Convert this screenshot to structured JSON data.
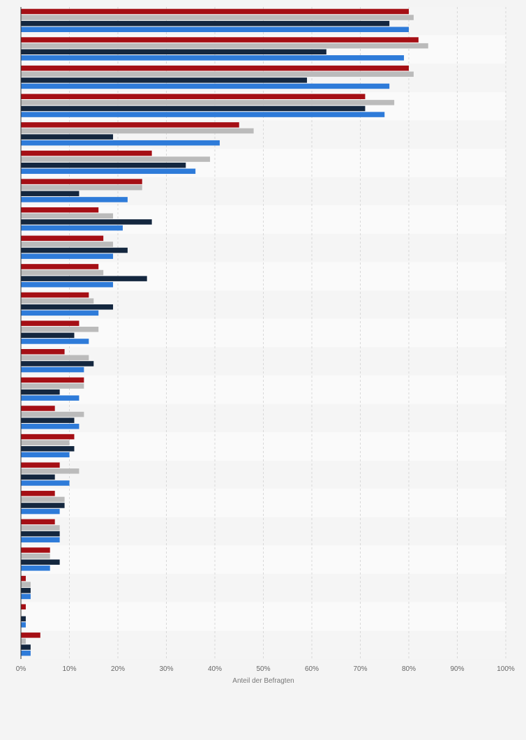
{
  "chart_data": {
    "type": "bar",
    "orientation": "horizontal",
    "categories": [
      "",
      "",
      "",
      "",
      "",
      "",
      "",
      "",
      "",
      "",
      "",
      "",
      "",
      "",
      "",
      "",
      "",
      "",
      "",
      "",
      "",
      "",
      ""
    ],
    "series": [
      {
        "color": "#a50f15",
        "values": [
          80,
          82,
          80,
          71,
          45,
          27,
          25,
          16,
          17,
          16,
          14,
          12,
          9,
          13,
          7,
          11,
          8,
          7,
          7,
          6,
          1,
          1,
          4
        ]
      },
      {
        "color": "#bbbbbb",
        "values": [
          81,
          84,
          81,
          77,
          48,
          39,
          25,
          19,
          19,
          17,
          15,
          16,
          14,
          13,
          13,
          10,
          12,
          9,
          8,
          6,
          2,
          0,
          1
        ]
      },
      {
        "color": "#14273f",
        "values": [
          76,
          63,
          59,
          71,
          19,
          34,
          12,
          27,
          22,
          26,
          19,
          11,
          15,
          8,
          11,
          11,
          7,
          9,
          8,
          8,
          2,
          1,
          2
        ]
      },
      {
        "color": "#2e7bd9",
        "values": [
          80,
          79,
          76,
          75,
          41,
          36,
          22,
          21,
          19,
          19,
          16,
          14,
          13,
          12,
          12,
          10,
          10,
          8,
          8,
          6,
          2,
          1,
          2
        ]
      }
    ],
    "xlim": [
      0,
      100
    ],
    "xticks": [
      "0%",
      "10%",
      "20%",
      "30%",
      "40%",
      "50%",
      "60%",
      "70%",
      "80%",
      "90%",
      "100%"
    ],
    "xlabel": "Anteil der Befragten",
    "grid": true,
    "legend": "none"
  }
}
